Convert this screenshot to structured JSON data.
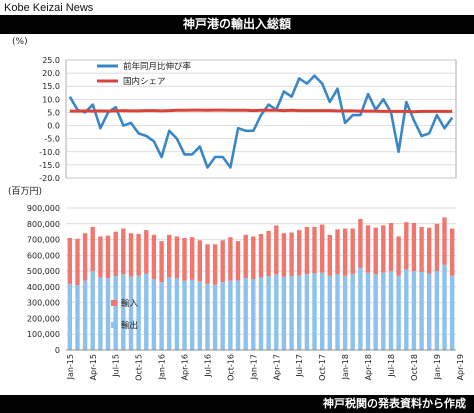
{
  "brand": "Kobe Keizai News",
  "title": "神戸港の輸出入総額",
  "footer": "神戸税関の発表資料から作成",
  "colors": {
    "growth_line": "#3a87c8",
    "share_line": "#d9443a",
    "import_bar": "#ef7770",
    "export_bar": "#8ec2ec",
    "grid": "#d0d0d0"
  },
  "chart_data": [
    {
      "type": "line",
      "unit_label": "(%)",
      "ylim": [
        -20,
        25
      ],
      "yticks": [
        "-20.0",
        "-15.0",
        "-10.0",
        "-5.0",
        "0.0",
        "5.0",
        "10.0",
        "15.0",
        "20.0",
        "25.0"
      ],
      "grid": true,
      "legend_position": "top-left",
      "series": [
        {
          "name": "前年同月比伸び率",
          "values": [
            11,
            6,
            5,
            8,
            -1,
            5,
            7,
            0,
            1,
            -3,
            -4,
            -6,
            -12,
            -2,
            -5,
            -11,
            -11,
            -8,
            -16,
            -12,
            -12,
            -16,
            -1,
            -2,
            -2,
            4,
            8,
            6,
            13,
            11,
            18,
            16,
            19,
            16,
            9,
            14,
            1,
            4,
            4,
            12,
            6,
            10,
            5,
            -10,
            9,
            2,
            -4,
            -3,
            4,
            -1,
            3
          ],
          "color": "#3a87c8"
        },
        {
          "name": "国内シェア",
          "values": [
            5.5,
            5.5,
            5.6,
            5.5,
            5.6,
            5.5,
            5.6,
            5.7,
            5.6,
            5.6,
            5.7,
            5.7,
            5.6,
            5.7,
            5.8,
            5.8,
            5.9,
            5.9,
            5.8,
            5.9,
            5.9,
            5.8,
            5.8,
            5.8,
            5.7,
            5.8,
            5.8,
            5.8,
            5.7,
            5.8,
            5.7,
            5.7,
            5.7,
            5.7,
            5.7,
            5.6,
            5.6,
            5.6,
            5.5,
            5.5,
            5.5,
            5.4,
            5.4,
            5.4,
            5.4,
            5.3,
            5.4,
            5.4,
            5.4,
            5.4,
            5.4
          ],
          "color": "#d9443a"
        }
      ]
    },
    {
      "type": "bar",
      "stacked": true,
      "unit_label": "(百万円)",
      "ylim": [
        0,
        900000
      ],
      "yticks": [
        "0",
        "100,000",
        "200,000",
        "300,000",
        "400,000",
        "500,000",
        "600,000",
        "700,000",
        "800,000",
        "900,000"
      ],
      "grid": true,
      "legend_position": "bottom-left",
      "x_tick_labels": [
        "Jan-15",
        "Apr-15",
        "Jul-15",
        "Oct-15",
        "Jan-16",
        "Apr-16",
        "Jul-16",
        "Oct-16",
        "Jan-17",
        "Apr-17",
        "Jul-17",
        "Oct-17",
        "Jan-18",
        "Apr-18",
        "Jul-18",
        "Oct-18",
        "Jan-19",
        "Apr-19"
      ],
      "series": [
        {
          "name": "輸出",
          "values": [
            420000,
            410000,
            440000,
            500000,
            460000,
            455000,
            470000,
            480000,
            465000,
            470000,
            485000,
            450000,
            430000,
            460000,
            455000,
            440000,
            445000,
            435000,
            420000,
            415000,
            430000,
            440000,
            440000,
            455000,
            450000,
            460000,
            470000,
            480000,
            465000,
            470000,
            475000,
            480000,
            485000,
            490000,
            470000,
            480000,
            470000,
            480000,
            520000,
            490000,
            480000,
            490000,
            500000,
            470000,
            510000,
            500000,
            495000,
            485000,
            500000,
            540000,
            470000
          ],
          "color": "#8ec2ec"
        },
        {
          "name": "輸入",
          "values": [
            290000,
            295000,
            300000,
            280000,
            260000,
            270000,
            280000,
            290000,
            275000,
            265000,
            275000,
            280000,
            260000,
            270000,
            265000,
            270000,
            270000,
            260000,
            250000,
            255000,
            265000,
            275000,
            250000,
            275000,
            270000,
            275000,
            285000,
            310000,
            275000,
            275000,
            285000,
            300000,
            295000,
            305000,
            260000,
            285000,
            300000,
            290000,
            310000,
            300000,
            295000,
            300000,
            305000,
            250000,
            300000,
            305000,
            285000,
            290000,
            300000,
            300000,
            300000
          ],
          "color": "#ef7770"
        }
      ]
    }
  ]
}
